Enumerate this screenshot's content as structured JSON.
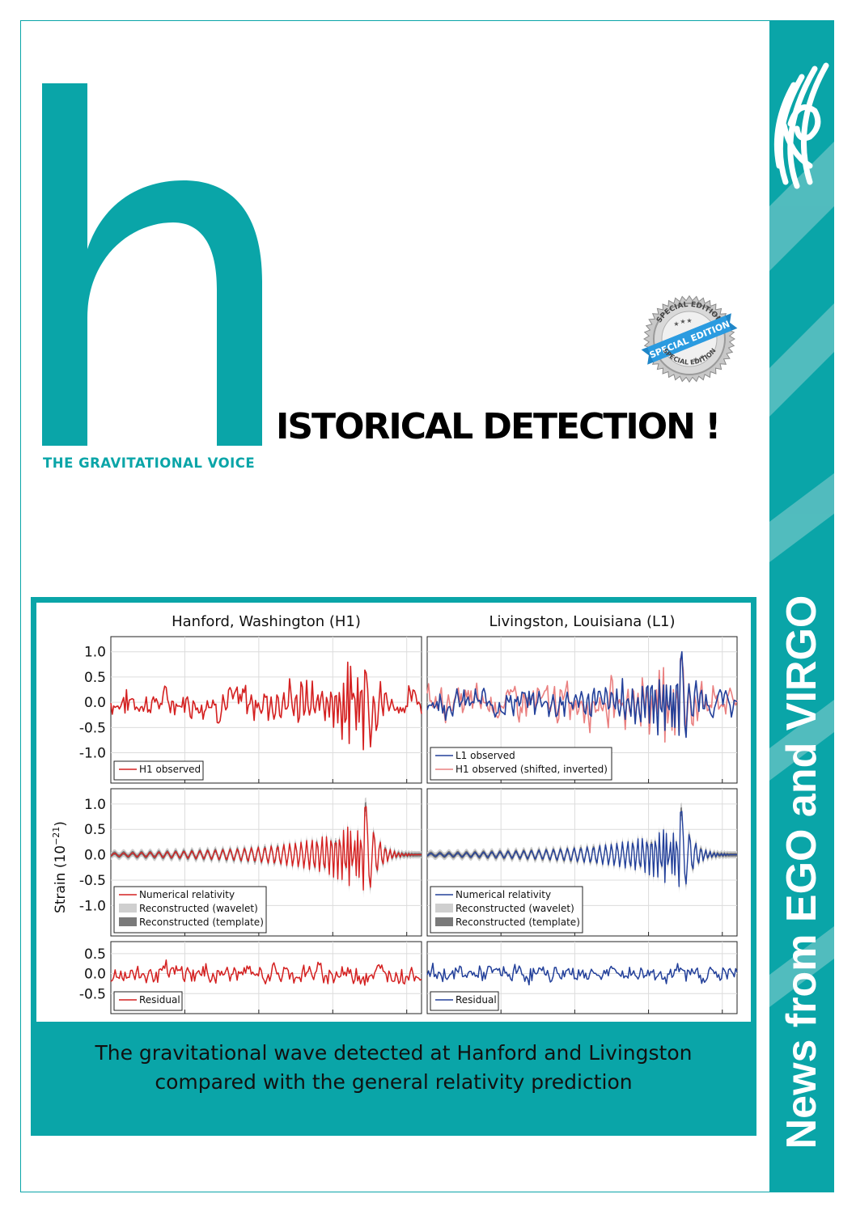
{
  "colors": {
    "teal": "#0aa5a8",
    "light_teal": "#5ec0c2",
    "h1_red": "#d42020",
    "l1_blue": "#23409a",
    "h1_shifted_pink": "#ea8080"
  },
  "masthead": {
    "letter": "h",
    "tagline": "THE GRAVITATIONAL VOICE",
    "headline": "ISTORICAL DETECTION !"
  },
  "badge": {
    "outer_text": "SPECIAL EDITION",
    "ribbon_text": "SPECIAL EDITION",
    "icon": "special-edition-seal-icon"
  },
  "sidebar": {
    "text": "News from EGO and VIRGO",
    "logo_icon": "waves-logo-icon"
  },
  "figure": {
    "caption_line1": "The gravitational wave detected at Hanford and Livingston",
    "caption_line2": "compared with the general relativity prediction"
  },
  "chart_data": {
    "type": "line",
    "y_axis_label": "Strain (10",
    "y_axis_exponent": "−21",
    "y_axis_close": ")",
    "columns": [
      {
        "title": "Hanford, Washington (H1)",
        "color": "#d42020"
      },
      {
        "title": "Livingston, Louisiana (L1)",
        "color": "#23409a"
      }
    ],
    "rows": [
      {
        "ylim": [
          -1.6,
          1.3
        ],
        "ticks": [
          "1.0",
          "0.5",
          "0.0",
          "-0.5",
          "-1.0"
        ],
        "tick_values": [
          1.0,
          0.5,
          0.0,
          -0.5,
          -1.0
        ]
      },
      {
        "ylim": [
          -1.6,
          1.3
        ],
        "ticks": [
          "1.0",
          "0.5",
          "0.0",
          "-0.5",
          "-1.0"
        ],
        "tick_values": [
          1.0,
          0.5,
          0.0,
          -0.5,
          -1.0
        ]
      },
      {
        "ylim": [
          -1.0,
          0.8
        ],
        "ticks": [
          "0.5",
          "0.0",
          "-0.5"
        ],
        "tick_values": [
          0.5,
          0.0,
          -0.5
        ]
      }
    ],
    "legends": {
      "h1_observed": "H1 observed",
      "l1_observed": "L1 observed",
      "h1_shifted": "H1 observed (shifted, inverted)",
      "numerical_relativity": "Numerical relativity",
      "reconstructed_wavelet": "Reconstructed (wavelet)",
      "reconstructed_template": "Reconstructed (template)",
      "residual": "Residual"
    },
    "grid": true
  }
}
